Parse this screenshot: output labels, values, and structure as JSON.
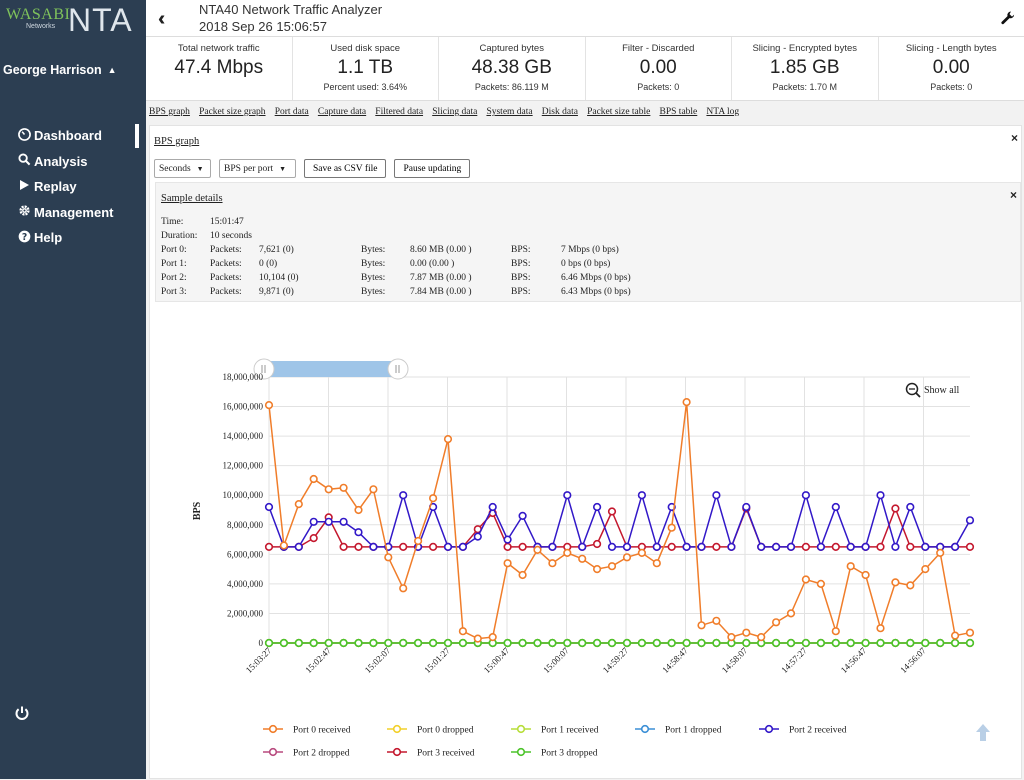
{
  "brand": {
    "wasabi": "WASABI",
    "networks": "Networks",
    "product": "NTA"
  },
  "user": {
    "name": "George Harrison"
  },
  "nav": [
    {
      "label": "Dashboard",
      "icon": "dashboard-icon"
    },
    {
      "label": "Analysis",
      "icon": "search-icon"
    },
    {
      "label": "Replay",
      "icon": "play-icon"
    },
    {
      "label": "Management",
      "icon": "gear-icon"
    },
    {
      "label": "Help",
      "icon": "help-icon"
    }
  ],
  "header": {
    "title": "NTA40 Network Traffic Analyzer",
    "datetime": "2018 Sep 26 15:06:57"
  },
  "stats": [
    {
      "label": "Total network traffic",
      "value": "47.4 Mbps",
      "sub": ""
    },
    {
      "label": "Used disk space",
      "value": "1.1 TB",
      "sub": "Percent used: 3.64%"
    },
    {
      "label": "Captured bytes",
      "value": "48.38 GB",
      "sub": "Packets: 86.119 M"
    },
    {
      "label": "Filter - Discarded",
      "value": "0.00",
      "sub": "Packets: 0"
    },
    {
      "label": "Slicing - Encrypted bytes",
      "value": "1.85 GB",
      "sub": "Packets: 1.70 M"
    },
    {
      "label": "Slicing - Length bytes",
      "value": "0.00",
      "sub": "Packets: 0"
    }
  ],
  "tabs": [
    "BPS graph",
    "Packet size graph",
    "Port data",
    "Capture data",
    "Filtered data",
    "Slicing data",
    "System data",
    "Disk data",
    "Packet size table",
    "BPS table",
    "NTA log"
  ],
  "panel": {
    "title": "BPS graph",
    "close": "×",
    "interval_select": "Seconds",
    "mode_select": "BPS per port",
    "csv_button": "Save as CSV file",
    "pause_button": "Pause updating"
  },
  "details": {
    "title": "Sample details",
    "close": "×",
    "time_label": "Time:",
    "time": "15:01:47",
    "duration_label": "Duration:",
    "duration": "10 seconds",
    "packets_label": "Packets:",
    "bytes_label": "Bytes:",
    "bps_label": "BPS:",
    "ports": [
      {
        "port": "Port 0:",
        "packets": "7,621 (0)",
        "bytes": "8.60 MB (0.00 )",
        "bps": "7 Mbps (0 bps)"
      },
      {
        "port": "Port 1:",
        "packets": "0 (0)",
        "bytes": "0.00 (0.00 )",
        "bps": "0 bps (0 bps)"
      },
      {
        "port": "Port 2:",
        "packets": "10,104 (0)",
        "bytes": "7.87 MB (0.00 )",
        "bps": "6.46 Mbps (0 bps)"
      },
      {
        "port": "Port 3:",
        "packets": "9,871 (0)",
        "bytes": "7.84 MB (0.00 )",
        "bps": "6.43 Mbps (0 bps)"
      }
    ]
  },
  "chart_controls": {
    "show_all": "Show all"
  },
  "chart_data": {
    "type": "line",
    "ylabel": "BPS",
    "ylim": [
      0,
      18000000
    ],
    "yticks": [
      0,
      2000000,
      4000000,
      6000000,
      8000000,
      10000000,
      12000000,
      14000000,
      16000000,
      18000000
    ],
    "ytick_labels": [
      "0",
      "2,000,000",
      "4,000,000",
      "6,000,000",
      "8,000,000",
      "10,000,000",
      "12,000,000",
      "14,000,000",
      "16,000,000",
      "18,000,000"
    ],
    "xtick_labels": [
      "15:03:27",
      "15:02:47",
      "15:02:07",
      "15:01:27",
      "15:00:47",
      "15:00:07",
      "14:59:27",
      "14:58:47",
      "14:58:07",
      "14:57:27",
      "14:56:47",
      "14:56:07"
    ],
    "grid": true,
    "legend_position": "bottom",
    "series": [
      {
        "name": "Port 0 received",
        "color": "#f07d2a",
        "values": [
          16100000,
          6600000,
          9400000,
          11100000,
          10400000,
          10500000,
          9000000,
          10400000,
          5800000,
          3700000,
          6900000,
          9800000,
          13800000,
          800000,
          300000,
          400000,
          5400000,
          4600000,
          6300000,
          5400000,
          6100000,
          5700000,
          5000000,
          5200000,
          5800000,
          6100000,
          5400000,
          7800000,
          16300000,
          1200000,
          1500000,
          400000,
          700000,
          400000,
          1400000,
          2000000,
          4300000,
          4000000,
          800000,
          5200000,
          4600000,
          1000000,
          4100000,
          3900000,
          5000000,
          6100000,
          500000,
          700000
        ]
      },
      {
        "name": "Port 0 dropped",
        "color": "#f2d02a",
        "values": [
          0,
          0,
          0,
          0,
          0,
          0,
          0,
          0,
          0,
          0,
          0,
          0,
          0,
          0,
          0,
          0,
          0,
          0,
          0,
          0,
          0,
          0,
          0,
          0,
          0,
          0,
          0,
          0,
          0,
          0,
          0,
          0,
          0,
          0,
          0,
          0,
          0,
          0,
          0,
          0,
          0,
          0,
          0,
          0,
          0,
          0,
          0,
          0
        ]
      },
      {
        "name": "Port 1 received",
        "color": "#b7de3a",
        "values": [
          0,
          0,
          0,
          0,
          0,
          0,
          0,
          0,
          0,
          0,
          0,
          0,
          0,
          0,
          0,
          0,
          0,
          0,
          0,
          0,
          0,
          0,
          0,
          0,
          0,
          0,
          0,
          0,
          0,
          0,
          0,
          0,
          0,
          0,
          0,
          0,
          0,
          0,
          0,
          0,
          0,
          0,
          0,
          0,
          0,
          0,
          0,
          0
        ]
      },
      {
        "name": "Port 1 dropped",
        "color": "#3b8fd6",
        "values": [
          0,
          0,
          0,
          0,
          0,
          0,
          0,
          0,
          0,
          0,
          0,
          0,
          0,
          0,
          0,
          0,
          0,
          0,
          0,
          0,
          0,
          0,
          0,
          0,
          0,
          0,
          0,
          0,
          0,
          0,
          0,
          0,
          0,
          0,
          0,
          0,
          0,
          0,
          0,
          0,
          0,
          0,
          0,
          0,
          0,
          0,
          0,
          0
        ]
      },
      {
        "name": "Port 2 received",
        "color": "#3218c8",
        "values": [
          9200000,
          6500000,
          6500000,
          8200000,
          8200000,
          8200000,
          7500000,
          6500000,
          6500000,
          10000000,
          6500000,
          9200000,
          6500000,
          6500000,
          7200000,
          9200000,
          7000000,
          8600000,
          6500000,
          6500000,
          10000000,
          6500000,
          9200000,
          6500000,
          6500000,
          10000000,
          6500000,
          9200000,
          6500000,
          6500000,
          10000000,
          6500000,
          9200000,
          6500000,
          6500000,
          6500000,
          10000000,
          6500000,
          9200000,
          6500000,
          6500000,
          10000000,
          6500000,
          9200000,
          6500000,
          6500000,
          6500000,
          8300000
        ]
      },
      {
        "name": "Port 2 dropped",
        "color": "#b84a7e",
        "values": [
          0,
          0,
          0,
          0,
          0,
          0,
          0,
          0,
          0,
          0,
          0,
          0,
          0,
          0,
          0,
          0,
          0,
          0,
          0,
          0,
          0,
          0,
          0,
          0,
          0,
          0,
          0,
          0,
          0,
          0,
          0,
          0,
          0,
          0,
          0,
          0,
          0,
          0,
          0,
          0,
          0,
          0,
          0,
          0,
          0,
          0,
          0,
          0
        ]
      },
      {
        "name": "Port 3 received",
        "color": "#c4182e",
        "values": [
          6500000,
          6500000,
          6500000,
          7100000,
          8500000,
          6500000,
          6500000,
          6500000,
          6500000,
          6500000,
          6500000,
          6500000,
          6500000,
          6500000,
          7700000,
          8800000,
          6500000,
          6500000,
          6500000,
          6500000,
          6500000,
          6500000,
          6700000,
          8900000,
          6500000,
          6500000,
          6500000,
          6500000,
          6500000,
          6500000,
          6500000,
          6500000,
          9100000,
          6500000,
          6500000,
          6500000,
          6500000,
          6500000,
          6500000,
          6500000,
          6500000,
          6500000,
          9100000,
          6500000,
          6500000,
          6500000,
          6500000,
          6500000
        ]
      },
      {
        "name": "Port 3 dropped",
        "color": "#4cc32a",
        "values": [
          0,
          0,
          0,
          0,
          0,
          0,
          0,
          0,
          0,
          0,
          0,
          0,
          0,
          0,
          0,
          0,
          0,
          0,
          0,
          0,
          0,
          0,
          0,
          0,
          0,
          0,
          0,
          0,
          0,
          0,
          0,
          0,
          0,
          0,
          0,
          0,
          0,
          0,
          0,
          0,
          0,
          0,
          0,
          0,
          0,
          0,
          0,
          0
        ]
      }
    ]
  }
}
